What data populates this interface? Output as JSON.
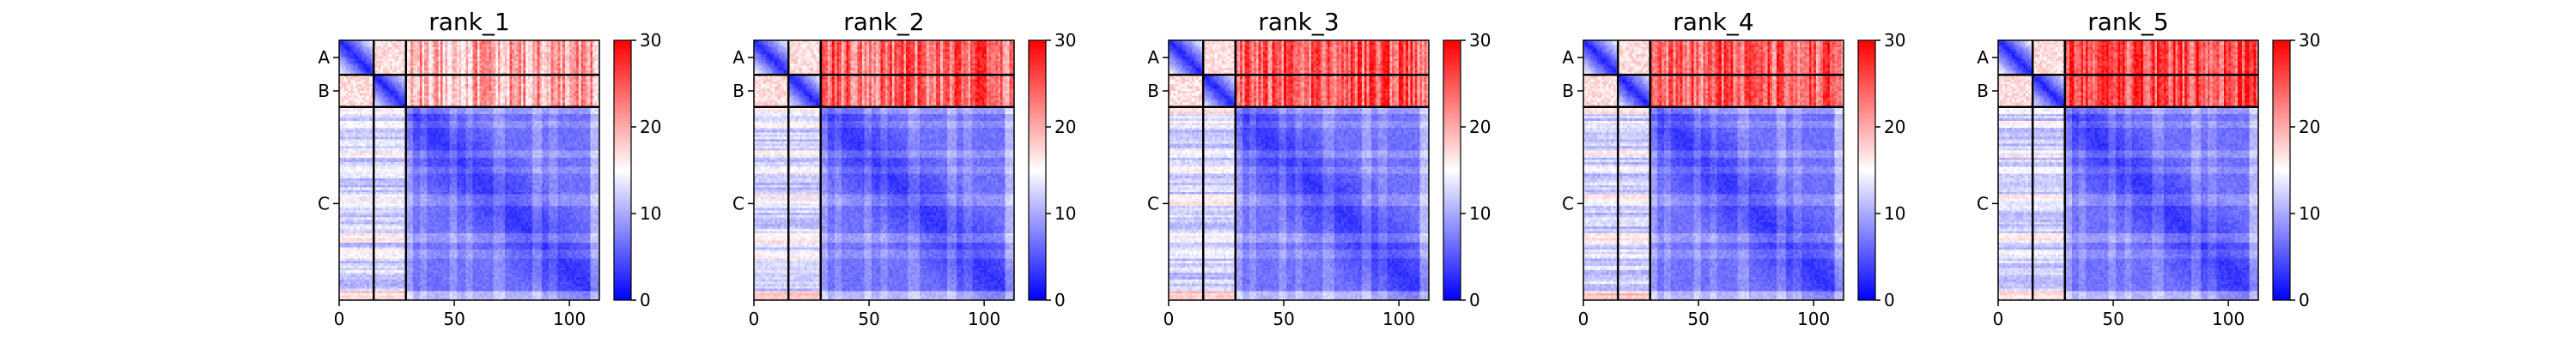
{
  "chart_data": {
    "type": "heatmap",
    "subtype": "predicted-aligned-error matrices per model rank",
    "panels": [
      {
        "title": "rank_1",
        "inter_chain_AB_C_mean": 20
      },
      {
        "title": "rank_2",
        "inter_chain_AB_C_mean": 24
      },
      {
        "title": "rank_3",
        "inter_chain_AB_C_mean": 25
      },
      {
        "title": "rank_4",
        "inter_chain_AB_C_mean": 24
      },
      {
        "title": "rank_5",
        "inter_chain_AB_C_mean": 26
      }
    ],
    "residues": 113,
    "chains": [
      {
        "label": "A",
        "start": 0,
        "end": 15
      },
      {
        "label": "B",
        "start": 15,
        "end": 29
      },
      {
        "label": "C",
        "start": 29,
        "end": 113
      }
    ],
    "x_ticks": [
      "0",
      "50",
      "100"
    ],
    "x_tick_values": [
      0,
      50,
      100
    ],
    "colorbar": {
      "ticks": [
        "0",
        "10",
        "20",
        "30"
      ],
      "tick_values": [
        0,
        10,
        20,
        30
      ],
      "range": [
        0,
        30
      ],
      "colormap": "bwr",
      "colors": {
        "low": "#0000ff",
        "mid": "#ffffff",
        "high": "#ff0000"
      }
    },
    "grid": false
  }
}
